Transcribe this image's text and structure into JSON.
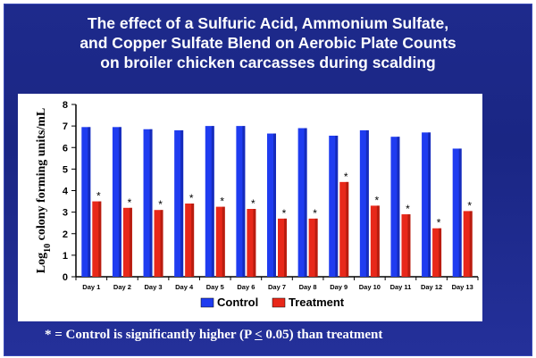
{
  "title_lines": [
    "The effect of a Sulfuric Acid, Ammonium Sulfate,",
    "and Copper Sulfate Blend on Aerobic Plate Counts",
    "on broiler chicken carcasses during scalding"
  ],
  "footnote": {
    "prefix": "* = Control is significantly higher (P ",
    "symbol": "<",
    "suffix": " 0.05) than treatment"
  },
  "chart_data": {
    "type": "bar",
    "ylabel_sub": "10",
    "ylabel_prefix": "Log",
    "ylabel_rest": " colony forming units/mL",
    "ylim": [
      0,
      8
    ],
    "yticks": [
      "0",
      "1",
      "2",
      "3",
      "4",
      "5",
      "6",
      "7",
      "8"
    ],
    "categories": [
      "Day 1",
      "Day 2",
      "Day 3",
      "Day 4",
      "Day 5",
      "Day 6",
      "Day 7",
      "Day 8",
      "Day 9",
      "Day 10",
      "Day 11",
      "Day 12",
      "Day 13"
    ],
    "series": [
      {
        "name": "Control",
        "color": "#1f3cf0",
        "values": [
          6.95,
          6.95,
          6.85,
          6.8,
          7.0,
          7.0,
          6.65,
          6.9,
          6.55,
          6.8,
          6.5,
          6.7,
          5.95
        ]
      },
      {
        "name": "Treatment",
        "color": "#e8281a",
        "values": [
          3.5,
          3.2,
          3.1,
          3.4,
          3.25,
          3.15,
          2.7,
          2.7,
          4.4,
          3.3,
          2.9,
          2.25,
          3.05
        ]
      }
    ],
    "marker": "*",
    "grid": false,
    "legend": "bottom-center"
  }
}
